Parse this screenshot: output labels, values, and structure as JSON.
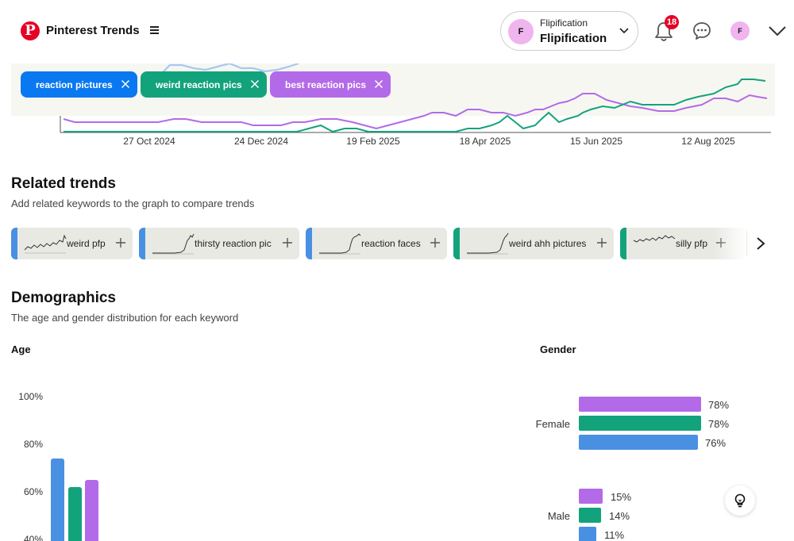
{
  "header": {
    "app_title": "Pinterest Trends",
    "account_initial": "F",
    "account_label": "Flipification",
    "account_name": "Flipification",
    "notification_count": "18",
    "mini_avatar_initial": "F"
  },
  "chart": {
    "x_ticks": [
      "27 Oct 2024",
      "24 Dec 2024",
      "19 Feb 2025",
      "18 Apr 2025",
      "15 Jun 2025",
      "12 Aug 2025"
    ],
    "colors": {
      "blue": "#4a90e2",
      "green": "#13a37c",
      "purple": "#b36ae8"
    },
    "keywords": [
      {
        "label": "reaction pictures",
        "color": "#0a78f0"
      },
      {
        "label": "weird reaction pics",
        "color": "#13a37c"
      },
      {
        "label": "best reaction pics",
        "color": "#b36ae8"
      }
    ]
  },
  "related": {
    "title": "Related trends",
    "subtitle": "Add related keywords to the graph to compare trends",
    "items": [
      {
        "label": "weird pfp",
        "color": "#4a90e2"
      },
      {
        "label": "thirsty reaction pic",
        "color": "#4a90e2"
      },
      {
        "label": "reaction faces",
        "color": "#4a90e2"
      },
      {
        "label": "weird ahh pictures",
        "color": "#13a37c"
      },
      {
        "label": "silly pfp",
        "color": "#13a37c"
      }
    ]
  },
  "demographics": {
    "title": "Demographics",
    "subtitle": "The age and gender distribution for each keyword",
    "age": {
      "title": "Age",
      "ticks": [
        "100%",
        "80%",
        "60%",
        "40%"
      ],
      "values_percent": {
        "blue": 74,
        "green": 62,
        "purple": 65
      }
    },
    "gender": {
      "title": "Gender",
      "female": {
        "label": "Female",
        "purple": "78%",
        "green": "78%",
        "blue": "76%"
      },
      "male": {
        "label": "Male",
        "purple": "15%",
        "green": "14%",
        "blue": "11%"
      }
    }
  }
}
